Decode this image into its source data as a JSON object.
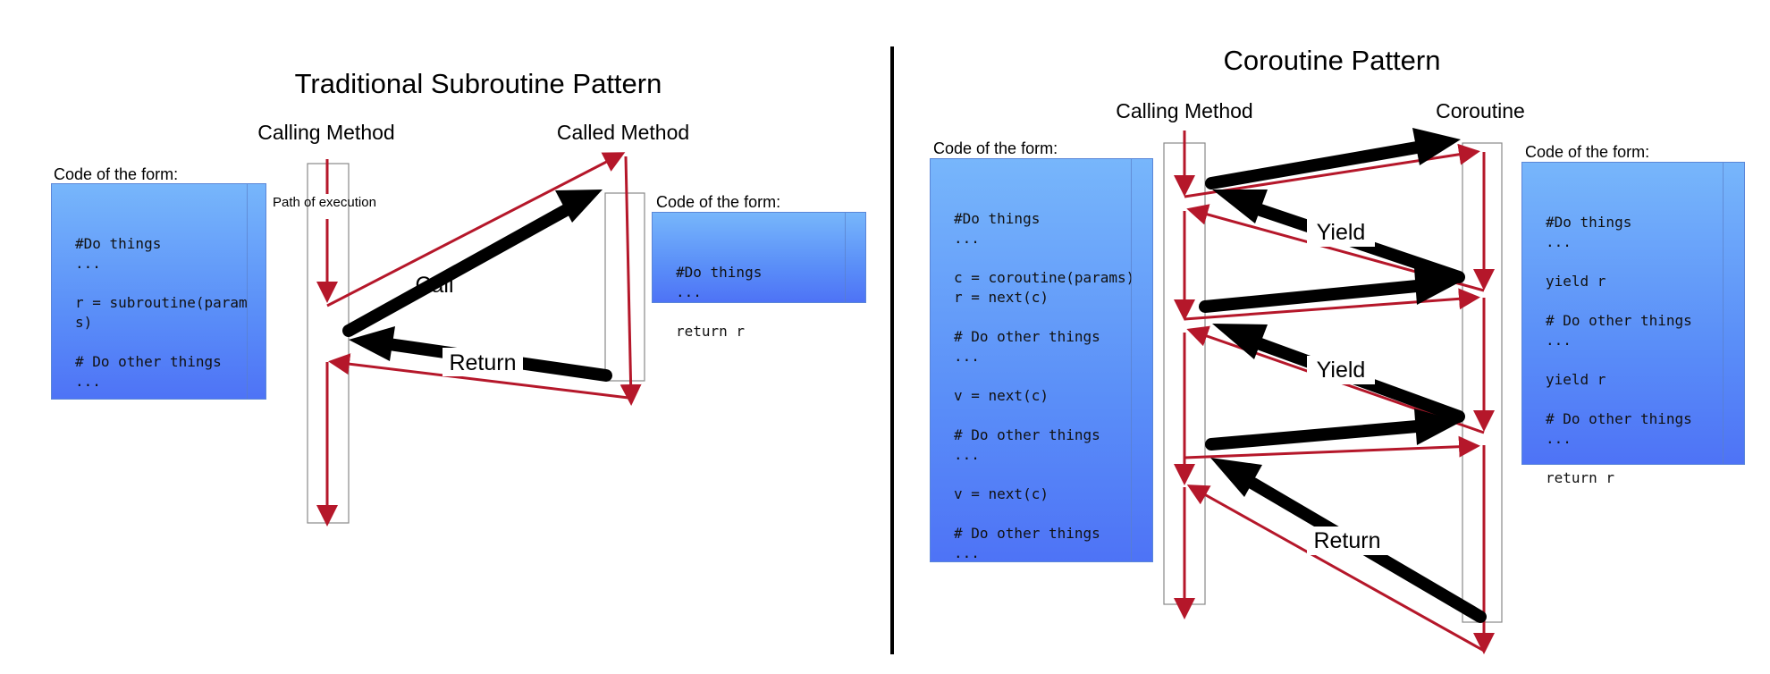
{
  "left": {
    "title": "Traditional Subroutine Pattern",
    "calling_label": "Calling Method",
    "called_label": "Called Method",
    "path_label": "Path of execution",
    "caller_code_label": "Code of the form:",
    "caller_code": [
      "#Do things",
      "...",
      "",
      "r = subroutine(params)",
      "",
      "# Do other things",
      "..."
    ],
    "callee_code_label": "Code of the form:",
    "callee_code": [
      "#Do things",
      "...",
      "",
      "return r"
    ],
    "call_label": "Call",
    "return_label": "Return"
  },
  "right": {
    "title": "Coroutine Pattern",
    "calling_label": "Calling Method",
    "coroutine_label": "Coroutine",
    "caller_code_label": "Code of the form:",
    "caller_code": [
      "#Do things",
      "...",
      "",
      "c = coroutine(params)",
      "r = next(c)",
      "",
      "# Do other things",
      "...",
      "",
      "v = next(c)",
      "",
      "# Do other things",
      "...",
      "",
      "v = next(c)",
      "",
      "# Do other things",
      "..."
    ],
    "coroutine_code_label": "Code of the form:",
    "coroutine_code": [
      "#Do things",
      "...",
      "",
      "yield r",
      "",
      "# Do other things",
      "...",
      "",
      "yield r",
      "",
      "# Do other things",
      "...",
      "",
      "return r"
    ],
    "yield_label_1": "Yield",
    "yield_label_2": "Yield",
    "return_label": "Return"
  },
  "colors": {
    "path": "#b5172a",
    "control_arrow": "#000000",
    "code_top": "#77b6fb",
    "code_bottom": "#4e73f6"
  }
}
